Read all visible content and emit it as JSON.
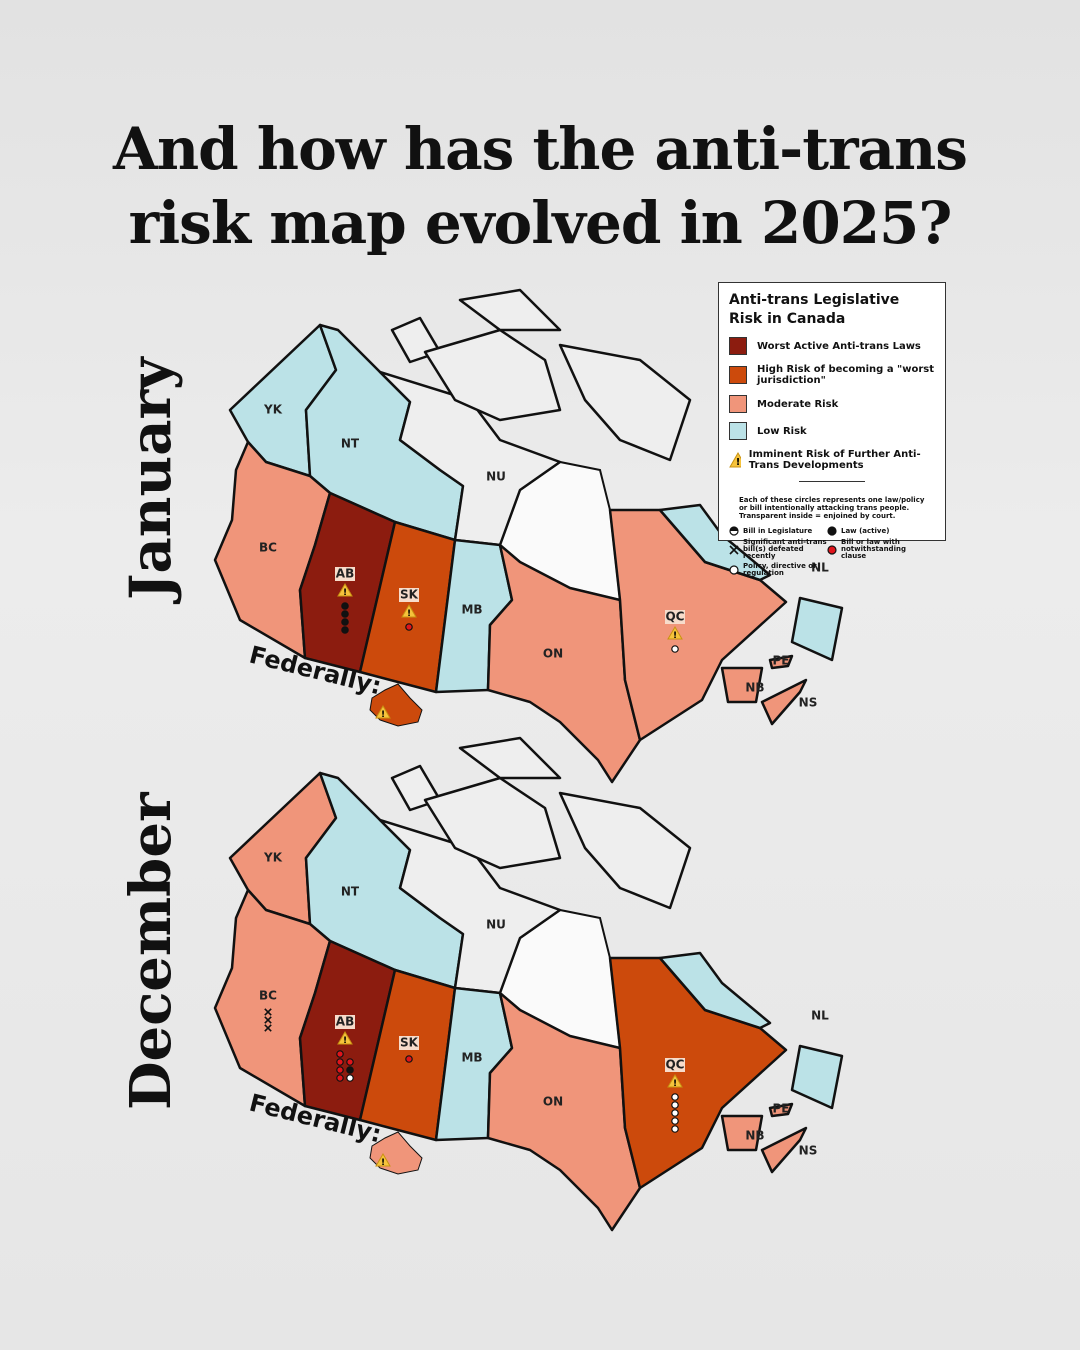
{
  "title": "And how has the anti-trans risk map evolved in 2025?",
  "legend": {
    "title": "Anti-trans Legislative Risk in Canada",
    "levels": [
      {
        "label": "Worst Active Anti-trans Laws",
        "color": "#8c1c0f"
      },
      {
        "label": "High Risk of becoming a \"worst jurisdiction\"",
        "color": "#cc4a0c"
      },
      {
        "label": "Moderate Risk",
        "color": "#f0957a"
      },
      {
        "label": "Low Risk",
        "color": "#bbe2e7"
      }
    ],
    "imminent": "Imminent Risk of Further Anti-Trans Developments",
    "note": "Each of these circles represents one law/policy or bill intentionally attacking trans people. Transparent inside = enjoined by court.",
    "symbols": [
      {
        "kind": "bill",
        "label": "Bill in Legislature"
      },
      {
        "kind": "law",
        "label": "Law (active)"
      },
      {
        "kind": "defeated",
        "label": "Significant anti-trans bill(s) defeated recently"
      },
      {
        "kind": "notwithstanding",
        "label": "Bill or law with notwithstanding clause"
      },
      {
        "kind": "policy",
        "label": "Policy, directive or regulation"
      }
    ]
  },
  "maps": [
    {
      "label": "January",
      "federally": "Federally:",
      "federal_color": "#cc4a0c",
      "federal_warning": true,
      "provinces": [
        {
          "code": "YK",
          "color": "#bbe2e7",
          "warning": false,
          "markers": []
        },
        {
          "code": "NT",
          "color": "#bbe2e7",
          "warning": false,
          "markers": []
        },
        {
          "code": "NU",
          "color": "#eeeeee",
          "warning": false,
          "markers": []
        },
        {
          "code": "BC",
          "color": "#f0957a",
          "warning": false,
          "markers": []
        },
        {
          "code": "AB",
          "color": "#8c1c0f",
          "warning": true,
          "markers": [
            "law",
            "law",
            "law",
            "law"
          ]
        },
        {
          "code": "SK",
          "color": "#cc4a0c",
          "warning": true,
          "markers": [
            "notwithstanding"
          ]
        },
        {
          "code": "MB",
          "color": "#bbe2e7",
          "warning": false,
          "markers": []
        },
        {
          "code": "ON",
          "color": "#f0957a",
          "warning": false,
          "markers": []
        },
        {
          "code": "QC",
          "color": "#f0957a",
          "warning": true,
          "markers": [
            "policy"
          ]
        },
        {
          "code": "NL",
          "color": "#bbe2e7",
          "warning": false,
          "markers": []
        },
        {
          "code": "PE",
          "color": "#f0957a",
          "warning": false,
          "markers": []
        },
        {
          "code": "NB",
          "color": "#f0957a",
          "warning": false,
          "markers": []
        },
        {
          "code": "NS",
          "color": "#f0957a",
          "warning": false,
          "markers": []
        }
      ]
    },
    {
      "label": "December",
      "federally": "Federally:",
      "federal_color": "#f0957a",
      "federal_warning": true,
      "provinces": [
        {
          "code": "YK",
          "color": "#f0957a",
          "warning": false,
          "markers": []
        },
        {
          "code": "NT",
          "color": "#bbe2e7",
          "warning": false,
          "markers": []
        },
        {
          "code": "NU",
          "color": "#eeeeee",
          "warning": false,
          "markers": []
        },
        {
          "code": "BC",
          "color": "#f0957a",
          "warning": false,
          "markers": [
            "defeated",
            "defeated",
            "defeated"
          ]
        },
        {
          "code": "AB",
          "color": "#8c1c0f",
          "warning": true,
          "markers": [
            "notwithstanding",
            "notwithstanding",
            "notwithstanding",
            "notwithstanding",
            "notwithstanding",
            "law",
            "policy"
          ]
        },
        {
          "code": "SK",
          "color": "#cc4a0c",
          "warning": false,
          "markers": [
            "notwithstanding"
          ]
        },
        {
          "code": "MB",
          "color": "#bbe2e7",
          "warning": false,
          "markers": []
        },
        {
          "code": "ON",
          "color": "#f0957a",
          "warning": false,
          "markers": []
        },
        {
          "code": "QC",
          "color": "#cc4a0c",
          "warning": true,
          "markers": [
            "policy",
            "policy",
            "policy",
            "policy",
            "policy"
          ]
        },
        {
          "code": "NL",
          "color": "#bbe2e7",
          "warning": false,
          "markers": []
        },
        {
          "code": "PE",
          "color": "#f0957a",
          "warning": false,
          "markers": []
        },
        {
          "code": "NB",
          "color": "#f0957a",
          "warning": false,
          "markers": []
        },
        {
          "code": "NS",
          "color": "#f0957a",
          "warning": false,
          "markers": []
        }
      ]
    }
  ]
}
